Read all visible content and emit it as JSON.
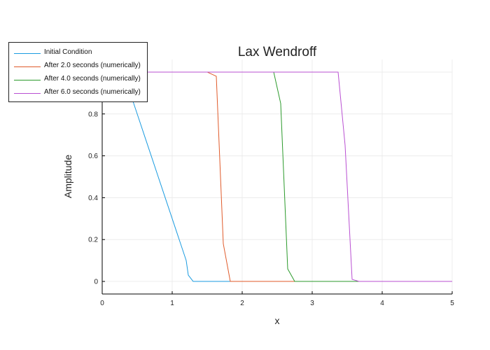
{
  "chart_data": {
    "type": "line",
    "title": "Lax Wendroff",
    "xlabel": "x",
    "ylabel": "Amplitude",
    "xlim": [
      0,
      5
    ],
    "ylim": [
      -0.06,
      1.06
    ],
    "xticks": [
      "0",
      "1",
      "2",
      "3",
      "4",
      "5"
    ],
    "yticks": [
      "0",
      "0.2",
      "0.4",
      "0.6",
      "0.8"
    ],
    "grid": true,
    "legend_position": "top-left",
    "series": [
      {
        "name": "Initial Condition",
        "color": "#1a9be0",
        "x": [
          0.0,
          0.1,
          0.2,
          0.3,
          0.4,
          0.5,
          0.6,
          0.7,
          0.8,
          0.9,
          1.0,
          1.1,
          1.2,
          1.23,
          1.3,
          1.4,
          1.5,
          2.0,
          3.0,
          4.0,
          5.0
        ],
        "y": [
          1.0,
          1.0,
          1.0,
          1.0,
          0.9,
          0.8,
          0.7,
          0.6,
          0.5,
          0.4,
          0.3,
          0.2,
          0.1,
          0.03,
          0.0,
          0.0,
          0.0,
          0.0,
          0.0,
          0.0,
          0.0
        ]
      },
      {
        "name": "After 2.0 seconds (numerically)",
        "color": "#e05a2a",
        "x": [
          0.0,
          1.0,
          1.5,
          1.63,
          1.73,
          1.83,
          2.0,
          3.0,
          4.0,
          5.0
        ],
        "y": [
          1.0,
          1.0,
          1.0,
          0.98,
          0.18,
          0.0,
          0.0,
          0.0,
          0.0,
          0.0
        ]
      },
      {
        "name": "After 4.0 seconds (numerically)",
        "color": "#2b9a2b",
        "x": [
          0.0,
          1.0,
          2.0,
          2.45,
          2.55,
          2.65,
          2.75,
          3.0,
          4.0,
          5.0
        ],
        "y": [
          1.0,
          1.0,
          1.0,
          1.0,
          0.85,
          0.06,
          0.0,
          0.0,
          0.0,
          0.0
        ]
      },
      {
        "name": "After 6.0 seconds (numerically)",
        "color": "#b94fd2",
        "x": [
          0.0,
          1.0,
          2.0,
          3.0,
          3.37,
          3.47,
          3.57,
          3.67,
          4.0,
          5.0
        ],
        "y": [
          1.0,
          1.0,
          1.0,
          1.0,
          1.0,
          0.65,
          0.01,
          0.0,
          0.0,
          0.0
        ]
      }
    ]
  }
}
